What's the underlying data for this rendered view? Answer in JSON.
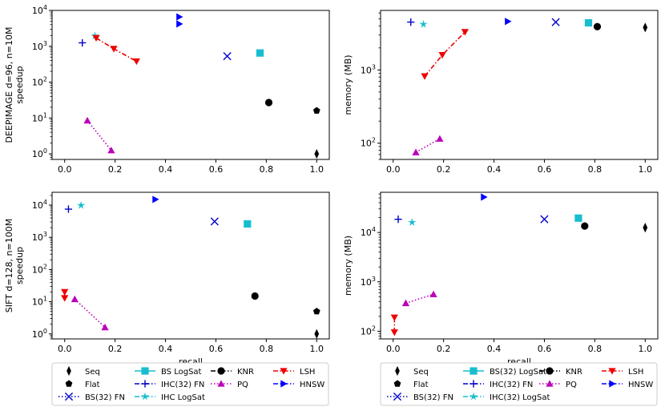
{
  "chart_data": [
    {
      "id": "tl",
      "type": "scatter",
      "ylabel": "DEEPIMAGE d=96, n=10M\nspeedup",
      "xlabel": "",
      "xlim": [
        -0.05,
        1.05
      ],
      "ylim": [
        0.7,
        10000
      ],
      "yscale": "log",
      "xticks": [
        "0.0",
        "0.2",
        "0.4",
        "0.6",
        "0.8",
        "1.0"
      ],
      "yticks": [
        "10^0",
        "10^1",
        "10^2",
        "10^3",
        "10^4"
      ],
      "series": [
        {
          "name": "Seq",
          "marker": "d",
          "color": "#000000",
          "points": [
            [
              1.0,
              1.0
            ]
          ]
        },
        {
          "name": "Flat",
          "marker": "p",
          "color": "#000000",
          "points": [
            [
              1.0,
              16
            ]
          ]
        },
        {
          "name": "KNR",
          "marker": "o",
          "color": "#000000",
          "points": [
            [
              0.81,
              27
            ]
          ]
        },
        {
          "name": "BS LogSat",
          "marker": "s",
          "color": "#17becf",
          "points": [
            [
              0.775,
              650
            ]
          ]
        },
        {
          "name": "BS(32) FN",
          "marker": "x",
          "color": "#0000cc",
          "points": [
            [
              0.645,
              530
            ]
          ]
        },
        {
          "name": "HNSW",
          "marker": ">",
          "color": "#0000ff",
          "points": [
            [
              0.455,
              4200
            ],
            [
              0.455,
              6600
            ]
          ]
        },
        {
          "name": "IHC(32) FN",
          "marker": "+",
          "color": "#0000cc",
          "points": [
            [
              0.07,
              1250
            ]
          ]
        },
        {
          "name": "IHC LogSat",
          "marker": "*",
          "color": "#17becf",
          "points": [
            [
              0.12,
              1950
            ]
          ]
        },
        {
          "name": "LSH",
          "marker": "v",
          "color": "#ee0000",
          "line": true,
          "points": [
            [
              0.125,
              1700
            ],
            [
              0.195,
              850
            ],
            [
              0.285,
              380
            ]
          ]
        },
        {
          "name": "PQ",
          "marker": "^",
          "color": "#bb00bb",
          "line": true,
          "points": [
            [
              0.09,
              8.5
            ],
            [
              0.185,
              1.25
            ]
          ]
        }
      ]
    },
    {
      "id": "tr",
      "type": "scatter",
      "ylabel": "memory (MB)",
      "xlabel": "",
      "xlim": [
        -0.05,
        1.05
      ],
      "ylim": [
        60,
        6500
      ],
      "yscale": "log",
      "xticks": [
        "0.0",
        "0.2",
        "0.4",
        "0.6",
        "0.8",
        "1.0"
      ],
      "yticks": [
        "10^2",
        "10^3"
      ],
      "series": [
        {
          "name": "Seq",
          "marker": "d",
          "color": "#000000",
          "points": [
            [
              1.0,
              3800
            ]
          ]
        },
        {
          "name": "KNR",
          "marker": "o",
          "color": "#000000",
          "points": [
            [
              0.81,
              3900
            ]
          ]
        },
        {
          "name": "BS LogSat",
          "marker": "s",
          "color": "#17becf",
          "points": [
            [
              0.775,
              4400
            ]
          ]
        },
        {
          "name": "BS(32) FN",
          "marker": "x",
          "color": "#0000cc",
          "points": [
            [
              0.645,
              4500
            ]
          ]
        },
        {
          "name": "HNSW",
          "marker": ">",
          "color": "#0000ff",
          "points": [
            [
              0.455,
              4600
            ]
          ]
        },
        {
          "name": "IHC(32) FN",
          "marker": "+",
          "color": "#0000cc",
          "points": [
            [
              0.07,
              4500
            ]
          ]
        },
        {
          "name": "IHC LogSat",
          "marker": "*",
          "color": "#17becf",
          "points": [
            [
              0.12,
              4200
            ]
          ]
        },
        {
          "name": "LSH",
          "marker": "v",
          "color": "#ee0000",
          "line": true,
          "points": [
            [
              0.125,
              820
            ],
            [
              0.195,
              1600
            ],
            [
              0.285,
              3300
            ]
          ]
        },
        {
          "name": "PQ",
          "marker": "^",
          "color": "#bb00bb",
          "line": true,
          "points": [
            [
              0.09,
              75
            ],
            [
              0.185,
              115
            ]
          ]
        }
      ]
    },
    {
      "id": "bl",
      "type": "scatter",
      "ylabel": "SIFT d=128, n=100M\nspeedup",
      "xlabel": "recall",
      "xlim": [
        -0.05,
        1.05
      ],
      "ylim": [
        0.7,
        25000
      ],
      "yscale": "log",
      "xticks": [
        "0.0",
        "0.2",
        "0.4",
        "0.6",
        "0.8",
        "1.0"
      ],
      "yticks": [
        "10^0",
        "10^1",
        "10^2",
        "10^3",
        "10^4"
      ],
      "series": [
        {
          "name": "Seq",
          "marker": "d",
          "color": "#000000",
          "points": [
            [
              1.0,
              1.0
            ]
          ]
        },
        {
          "name": "Flat",
          "marker": "p",
          "color": "#000000",
          "points": [
            [
              1.0,
              5.0
            ]
          ]
        },
        {
          "name": "KNR",
          "marker": "o",
          "color": "#000000",
          "points": [
            [
              0.755,
              15
            ]
          ]
        },
        {
          "name": "BS(32) LogSat",
          "marker": "s",
          "color": "#17becf",
          "points": [
            [
              0.725,
              2600
            ]
          ]
        },
        {
          "name": "BS(32) FN",
          "marker": "x",
          "color": "#0000cc",
          "points": [
            [
              0.595,
              3100
            ]
          ]
        },
        {
          "name": "HNSW",
          "marker": ">",
          "color": "#0000ff",
          "points": [
            [
              0.36,
              15000
            ]
          ]
        },
        {
          "name": "IHC(32) FN",
          "marker": "+",
          "color": "#0000cc",
          "points": [
            [
              0.015,
              7500
            ]
          ]
        },
        {
          "name": "IHC(32) LogSat",
          "marker": "*",
          "color": "#17becf",
          "points": [
            [
              0.065,
              9800
            ]
          ]
        },
        {
          "name": "LSH",
          "marker": "v",
          "color": "#ee0000",
          "line": true,
          "points": [
            [
              0.0,
              13
            ],
            [
              0.0,
              20
            ]
          ]
        },
        {
          "name": "PQ",
          "marker": "^",
          "color": "#bb00bb",
          "line": true,
          "points": [
            [
              0.04,
              12
            ],
            [
              0.16,
              1.6
            ]
          ]
        }
      ]
    },
    {
      "id": "br",
      "type": "scatter",
      "ylabel": "memory (MB)",
      "xlabel": "recall",
      "xlim": [
        -0.05,
        1.05
      ],
      "ylim": [
        70,
        65000
      ],
      "yscale": "log",
      "xticks": [
        "0.0",
        "0.2",
        "0.4",
        "0.6",
        "0.8",
        "1.0"
      ],
      "yticks": [
        "10^2",
        "10^3",
        "10^4"
      ],
      "series": [
        {
          "name": "Seq",
          "marker": "d",
          "color": "#000000",
          "points": [
            [
              1.0,
              12500
            ]
          ]
        },
        {
          "name": "KNR",
          "marker": "o",
          "color": "#000000",
          "points": [
            [
              0.76,
              13500
            ]
          ]
        },
        {
          "name": "BS(32) LogSat",
          "marker": "s",
          "color": "#17becf",
          "points": [
            [
              0.735,
              19500
            ]
          ]
        },
        {
          "name": "BS(32) FN",
          "marker": "x",
          "color": "#0000cc",
          "points": [
            [
              0.6,
              18500
            ]
          ]
        },
        {
          "name": "HNSW",
          "marker": ">",
          "color": "#0000ff",
          "points": [
            [
              0.36,
              52000
            ]
          ]
        },
        {
          "name": "IHC(32) FN",
          "marker": "+",
          "color": "#0000cc",
          "points": [
            [
              0.02,
              18500
            ]
          ]
        },
        {
          "name": "IHC(32) LogSat",
          "marker": "*",
          "color": "#17becf",
          "points": [
            [
              0.075,
              16000
            ]
          ]
        },
        {
          "name": "LSH",
          "marker": "v",
          "color": "#ee0000",
          "line": true,
          "points": [
            [
              0.005,
              95
            ],
            [
              0.005,
              190
            ]
          ]
        },
        {
          "name": "PQ",
          "marker": "^",
          "color": "#bb00bb",
          "line": true,
          "points": [
            [
              0.05,
              370
            ],
            [
              0.16,
              560
            ]
          ]
        }
      ]
    }
  ],
  "legend_left": {
    "entries": [
      {
        "label": "Seq",
        "marker": "d",
        "color": "#000000",
        "line": false
      },
      {
        "label": "Flat",
        "marker": "p",
        "color": "#000000",
        "line": false
      },
      {
        "label": "BS(32) FN",
        "marker": "x",
        "color": "#0000cc",
        "line": true,
        "dash": "dotted"
      },
      {
        "label": "BS LogSat",
        "marker": "s",
        "color": "#17becf",
        "line": true,
        "dash": "solid"
      },
      {
        "label": "IHC(32) FN",
        "marker": "+",
        "color": "#0000cc",
        "line": true,
        "dash": "dashdot"
      },
      {
        "label": "IHC LogSat",
        "marker": "*",
        "color": "#17becf",
        "line": true,
        "dash": "dashdot"
      },
      {
        "label": "KNR",
        "marker": "o",
        "color": "#000000",
        "line": true,
        "dash": "dashdot"
      },
      {
        "label": "PQ",
        "marker": "^",
        "color": "#bb00bb",
        "line": true,
        "dash": "dotted"
      },
      {
        "label": "LSH",
        "marker": "v",
        "color": "#ee0000",
        "line": true,
        "dash": "dashdot"
      },
      {
        "label": "HNSW",
        "marker": ">",
        "color": "#0000ff",
        "line": true,
        "dash": "dashdot"
      }
    ]
  },
  "legend_right": {
    "entries": [
      {
        "label": "Seq",
        "marker": "d",
        "color": "#000000",
        "line": false
      },
      {
        "label": "Flat",
        "marker": "p",
        "color": "#000000",
        "line": false
      },
      {
        "label": "BS(32) FN",
        "marker": "x",
        "color": "#0000cc",
        "line": true,
        "dash": "dotted"
      },
      {
        "label": "BS(32) LogSat",
        "marker": "s",
        "color": "#17becf",
        "line": true,
        "dash": "solid"
      },
      {
        "label": "IHC(32) FN",
        "marker": "+",
        "color": "#0000cc",
        "line": true,
        "dash": "dashdot"
      },
      {
        "label": "IHC(32) LogSat",
        "marker": "*",
        "color": "#17becf",
        "line": true,
        "dash": "dashdot"
      },
      {
        "label": "KNR",
        "marker": "o",
        "color": "#000000",
        "line": true,
        "dash": "dashdot"
      },
      {
        "label": "PQ",
        "marker": "^",
        "color": "#bb00bb",
        "line": true,
        "dash": "dotted"
      },
      {
        "label": "LSH",
        "marker": "v",
        "color": "#ee0000",
        "line": true,
        "dash": "dashdot"
      },
      {
        "label": "HNSW",
        "marker": ">",
        "color": "#0000ff",
        "line": true,
        "dash": "dashdot"
      }
    ]
  }
}
